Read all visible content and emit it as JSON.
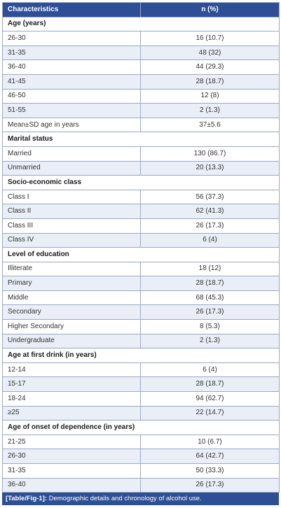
{
  "table": {
    "header": {
      "characteristics": "Characteristics",
      "n": "n (%)"
    },
    "rows": [
      {
        "type": "section",
        "label": "Age (years)"
      },
      {
        "type": "row",
        "label": "26-30",
        "value": "16 (10.7)"
      },
      {
        "type": "row",
        "label": "31-35",
        "value": "48 (32)"
      },
      {
        "type": "row",
        "label": "36-40",
        "value": "44 (29.3)"
      },
      {
        "type": "row",
        "label": "41-45",
        "value": "28 (18.7)"
      },
      {
        "type": "row",
        "label": "46-50",
        "value": "12 (8)"
      },
      {
        "type": "row",
        "label": "51-55",
        "value": "2 (1.3)"
      },
      {
        "type": "row",
        "label": "Mean±SD age in years",
        "value": "37±5.6"
      },
      {
        "type": "section",
        "label": "Marital status"
      },
      {
        "type": "row",
        "label": "Married",
        "value": "130 (86.7)"
      },
      {
        "type": "row",
        "label": "Unmarried",
        "value": "20 (13.3)"
      },
      {
        "type": "section",
        "label": "Socio-economic class"
      },
      {
        "type": "row",
        "label": "Class I",
        "value": "56 (37.3)"
      },
      {
        "type": "row",
        "label": "Class II",
        "value": "62 (41.3)"
      },
      {
        "type": "row",
        "label": "Class III",
        "value": "26 (17.3)"
      },
      {
        "type": "row",
        "label": "Class IV",
        "value": "6 (4)"
      },
      {
        "type": "section",
        "label": "Level of education"
      },
      {
        "type": "row",
        "label": "Illiterate",
        "value": "18 (12)"
      },
      {
        "type": "row",
        "label": "Primary",
        "value": "28 (18.7)"
      },
      {
        "type": "row",
        "label": "Middle",
        "value": "68 (45.3)"
      },
      {
        "type": "row",
        "label": "Secondary",
        "value": "26 (17.3)"
      },
      {
        "type": "row",
        "label": "Higher Secondary",
        "value": "8 (5.3)"
      },
      {
        "type": "row",
        "label": "Undergraduate",
        "value": "2 (1.3)"
      },
      {
        "type": "section",
        "label": "Age at first drink (in years)"
      },
      {
        "type": "row",
        "label": "12-14",
        "value": "6 (4)"
      },
      {
        "type": "row",
        "label": "15-17",
        "value": "28 (18.7)"
      },
      {
        "type": "row",
        "label": "18-24",
        "value": "94 (62.7)"
      },
      {
        "type": "row",
        "label": "≥25",
        "value": "22 (14.7)"
      },
      {
        "type": "section",
        "label": "Age of onset of dependence (in years)"
      },
      {
        "type": "row",
        "label": "21-25",
        "value": "10 (6.7)"
      },
      {
        "type": "row",
        "label": "26-30",
        "value": "64 (42.7)"
      },
      {
        "type": "row",
        "label": "31-35",
        "value": "50 (33.3)"
      },
      {
        "type": "row",
        "label": "36-40",
        "value": "26 (17.3)"
      }
    ]
  },
  "caption": {
    "tag": "[Table/Fig-1]:",
    "text": "Demographic details and chronology of alcohol use."
  },
  "colors": {
    "header_bg": "#2e4f96",
    "row_shade": "#e9eef7",
    "border": "#9aa9c4"
  }
}
